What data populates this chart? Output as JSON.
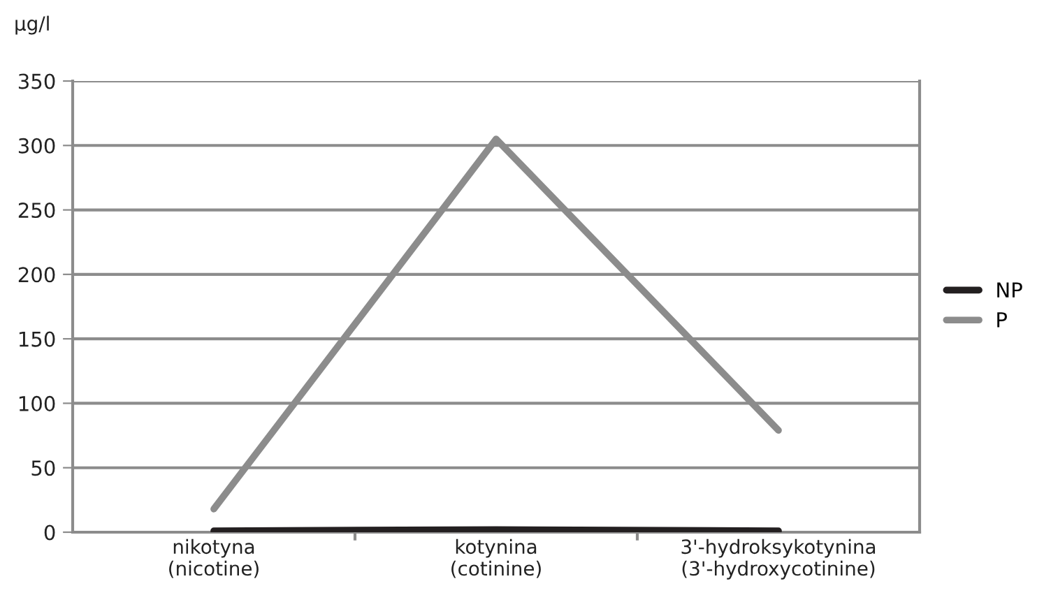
{
  "chart_data": {
    "type": "line",
    "ylabel": "µg/l",
    "categories": [
      "nikotyna\n(nicotine)",
      "kotynina\n(cotinine)",
      "3'-hydroksykotynina\n(3'-hydroxycotinine)"
    ],
    "series": [
      {
        "name": "NP",
        "color": "#231f20",
        "values": [
          1,
          2,
          1
        ]
      },
      {
        "name": "P",
        "color": "#8c8c8c",
        "values": [
          18,
          305,
          79
        ]
      }
    ],
    "ylim": [
      0,
      350
    ],
    "yticks": [
      0,
      50,
      100,
      150,
      200,
      250,
      300,
      350
    ],
    "grid": "y",
    "legend": "right",
    "marker": "none",
    "line_style": "solid"
  }
}
